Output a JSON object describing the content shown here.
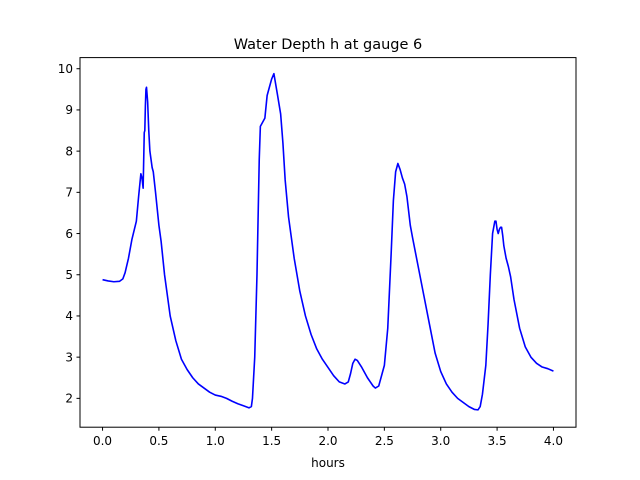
{
  "chart_data": {
    "type": "line",
    "title": "Water Depth h at gauge 6",
    "xlabel": "hours",
    "ylabel": "",
    "xlim": [
      -0.2,
      4.2
    ],
    "ylim": [
      1.3,
      10.27
    ],
    "xticks": [
      "0.0",
      "0.5",
      "1.0",
      "1.5",
      "2.0",
      "2.5",
      "3.0",
      "3.5",
      "4.0"
    ],
    "yticks": [
      "2",
      "3",
      "4",
      "5",
      "6",
      "7",
      "8",
      "9",
      "10"
    ],
    "grid": false,
    "series": [
      {
        "color": "#0000ff",
        "x": [
          0.0,
          0.05,
          0.1,
          0.15,
          0.18,
          0.2,
          0.23,
          0.26,
          0.3,
          0.32,
          0.34,
          0.35,
          0.36,
          0.37,
          0.375,
          0.38,
          0.385,
          0.39,
          0.4,
          0.41,
          0.42,
          0.43,
          0.44,
          0.45,
          0.47,
          0.5,
          0.52,
          0.55,
          0.6,
          0.65,
          0.7,
          0.75,
          0.8,
          0.85,
          0.9,
          0.95,
          1.0,
          1.05,
          1.1,
          1.15,
          1.2,
          1.25,
          1.3,
          1.32,
          1.33,
          1.35,
          1.37,
          1.39,
          1.4,
          1.42,
          1.44,
          1.46,
          1.48,
          1.5,
          1.52,
          1.55,
          1.58,
          1.6,
          1.62,
          1.65,
          1.7,
          1.75,
          1.8,
          1.85,
          1.9,
          1.95,
          2.0,
          2.05,
          2.1,
          2.15,
          2.18,
          2.2,
          2.22,
          2.24,
          2.26,
          2.3,
          2.35,
          2.4,
          2.42,
          2.45,
          2.5,
          2.53,
          2.56,
          2.58,
          2.6,
          2.62,
          2.64,
          2.66,
          2.68,
          2.7,
          2.73,
          2.75,
          2.8,
          2.85,
          2.9,
          2.95,
          3.0,
          3.05,
          3.1,
          3.15,
          3.2,
          3.25,
          3.3,
          3.33,
          3.35,
          3.37,
          3.4,
          3.42,
          3.44,
          3.46,
          3.48,
          3.49,
          3.5,
          3.51,
          3.52,
          3.53,
          3.54,
          3.55,
          3.56,
          3.58,
          3.6,
          3.62,
          3.65,
          3.7,
          3.75,
          3.8,
          3.85,
          3.9,
          3.95,
          4.0
        ],
        "y": [
          4.88,
          4.85,
          4.83,
          4.84,
          4.9,
          5.05,
          5.4,
          5.85,
          6.3,
          6.9,
          7.45,
          7.35,
          7.1,
          8.45,
          8.5,
          9.1,
          9.5,
          9.55,
          9.2,
          8.5,
          8.0,
          7.8,
          7.6,
          7.5,
          7.0,
          6.2,
          5.8,
          5.0,
          4.0,
          3.4,
          2.95,
          2.7,
          2.5,
          2.35,
          2.25,
          2.15,
          2.08,
          2.05,
          2.0,
          1.93,
          1.87,
          1.82,
          1.77,
          1.8,
          2.0,
          3.0,
          5.0,
          7.8,
          8.6,
          8.7,
          8.8,
          9.35,
          9.55,
          9.75,
          9.88,
          9.4,
          8.9,
          8.2,
          7.3,
          6.4,
          5.4,
          4.6,
          4.0,
          3.55,
          3.2,
          2.95,
          2.75,
          2.55,
          2.4,
          2.35,
          2.4,
          2.6,
          2.85,
          2.95,
          2.92,
          2.75,
          2.5,
          2.3,
          2.25,
          2.3,
          2.8,
          3.7,
          5.5,
          6.8,
          7.5,
          7.7,
          7.55,
          7.35,
          7.2,
          6.9,
          6.2,
          5.9,
          5.2,
          4.5,
          3.8,
          3.1,
          2.65,
          2.35,
          2.15,
          2.0,
          1.9,
          1.8,
          1.73,
          1.72,
          1.8,
          2.1,
          2.8,
          3.8,
          5.0,
          6.0,
          6.3,
          6.3,
          6.1,
          6.0,
          6.1,
          6.15,
          6.15,
          5.95,
          5.7,
          5.4,
          5.2,
          4.95,
          4.4,
          3.7,
          3.25,
          3.0,
          2.85,
          2.76,
          2.72,
          2.66
        ]
      }
    ]
  }
}
